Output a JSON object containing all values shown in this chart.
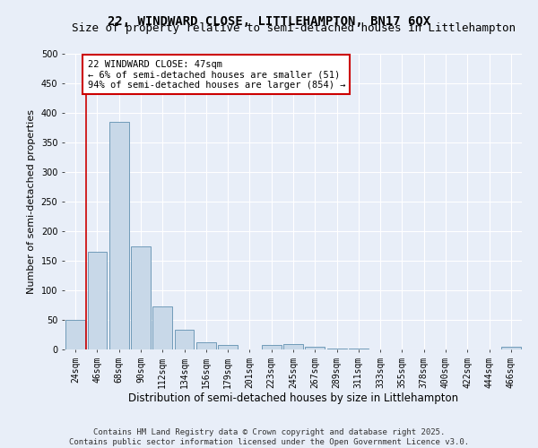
{
  "title1": "22, WINDWARD CLOSE, LITTLEHAMPTON, BN17 6QX",
  "title2": "Size of property relative to semi-detached houses in Littlehampton",
  "xlabel": "Distribution of semi-detached houses by size in Littlehampton",
  "ylabel": "Number of semi-detached properties",
  "categories": [
    "24sqm",
    "46sqm",
    "68sqm",
    "90sqm",
    "112sqm",
    "134sqm",
    "156sqm",
    "179sqm",
    "201sqm",
    "223sqm",
    "245sqm",
    "267sqm",
    "289sqm",
    "311sqm",
    "333sqm",
    "355sqm",
    "378sqm",
    "400sqm",
    "422sqm",
    "444sqm",
    "466sqm"
  ],
  "values": [
    50,
    165,
    385,
    175,
    73,
    33,
    12,
    7,
    0,
    8,
    9,
    5,
    2,
    1,
    0,
    0,
    0,
    0,
    0,
    0,
    4
  ],
  "bar_color": "#c8d8e8",
  "bar_edge_color": "#6090b0",
  "marker_line_color": "#cc0000",
  "annotation_title": "22 WINDWARD CLOSE: 47sqm",
  "annotation_line1": "← 6% of semi-detached houses are smaller (51)",
  "annotation_line2": "94% of semi-detached houses are larger (854) →",
  "annotation_box_color": "#ffffff",
  "annotation_box_edge": "#cc0000",
  "ylim": [
    0,
    500
  ],
  "yticks": [
    0,
    50,
    100,
    150,
    200,
    250,
    300,
    350,
    400,
    450,
    500
  ],
  "footer1": "Contains HM Land Registry data © Crown copyright and database right 2025.",
  "footer2": "Contains public sector information licensed under the Open Government Licence v3.0.",
  "bg_color": "#e8eef8",
  "grid_color": "#ffffff",
  "title1_fontsize": 10,
  "title2_fontsize": 9,
  "tick_fontsize": 7,
  "xlabel_fontsize": 8.5,
  "ylabel_fontsize": 8,
  "annotation_fontsize": 7.5,
  "footer_fontsize": 6.5
}
